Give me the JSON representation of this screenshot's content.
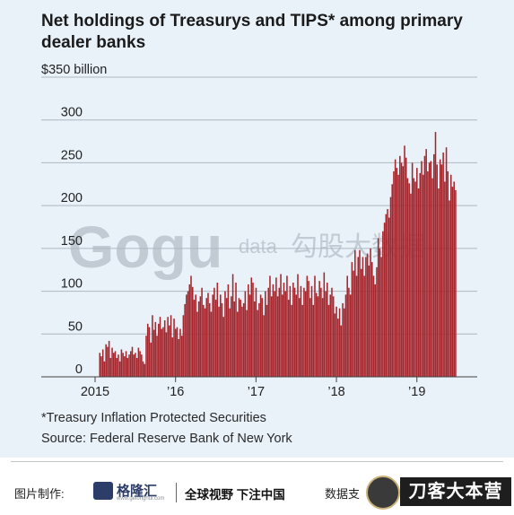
{
  "title": "Net holdings of Treasurys and TIPS* among primary dealer banks",
  "footnote": "*Treasury Inflation Protected Securities",
  "source": "Source: Federal Reserve Bank of New York",
  "watermark": {
    "latin": "Gogu",
    "small": "data",
    "cjk": "勾股大数据"
  },
  "footer": {
    "credit_label": "图片制作:",
    "logo_name": "格隆汇",
    "logo_sub": "www.gelonghui.com",
    "slogan": "全球视野 下注中国",
    "data_support": "数据支",
    "brand": "刀客大本营"
  },
  "colors": {
    "bar": "#a5262d",
    "background": "#e9f1f9",
    "gridline": "#aeb6bf"
  },
  "chart_data": {
    "type": "bar",
    "title": "Net holdings of Treasurys and TIPS* among primary dealer banks",
    "ylabel": "$350 billion",
    "ylim": [
      0,
      350
    ],
    "yticks": [
      0,
      50,
      100,
      150,
      200,
      250,
      300
    ],
    "ytick_labels": [
      "0",
      "50",
      "100",
      "150",
      "200",
      "250",
      "300"
    ],
    "top_label": "$350 billion",
    "xlim": [
      2015.0,
      2019.75
    ],
    "xticks": [
      2015,
      2016,
      2017,
      2018,
      2019
    ],
    "xtick_labels": [
      "2015",
      "’16",
      "’17",
      "’18",
      "’19"
    ],
    "grid": true,
    "series": [
      {
        "frequency": "weekly",
        "start": 2015.05,
        "step": 0.01923,
        "values": [
          28,
          24,
          32,
          18,
          38,
          35,
          42,
          22,
          34,
          28,
          30,
          22,
          26,
          18,
          32,
          28,
          24,
          30,
          22,
          26,
          30,
          35,
          26,
          28,
          22,
          34,
          30,
          26,
          18,
          15,
          48,
          62,
          58,
          40,
          72,
          55,
          64,
          48,
          62,
          70,
          56,
          58,
          66,
          52,
          70,
          60,
          72,
          46,
          68,
          56,
          58,
          44,
          56,
          48,
          72,
          85,
          96,
          100,
          108,
          118,
          105,
          90,
          96,
          76,
          88,
          94,
          104,
          84,
          80,
          92,
          98,
          86,
          76,
          96,
          104,
          90,
          110,
          82,
          96,
          86,
          70,
          100,
          92,
          108,
          80,
          94,
          120,
          88,
          110,
          76,
          92,
          90,
          82,
          86,
          100,
          78,
          108,
          96,
          116,
          110,
          88,
          104,
          78,
          86,
          96,
          92,
          72,
          100,
          84,
          104,
          118,
          94,
          108,
          100,
          116,
          94,
          104,
          120,
          96,
          110,
          100,
          118,
          90,
          106,
          84,
          110,
          104,
          96,
          120,
          92,
          106,
          84,
          104,
          100,
          118,
          112,
          92,
          106,
          84,
          118,
          98,
          94,
          112,
          104,
          92,
          122,
          100,
          110,
          84,
          96,
          104,
          94,
          74,
          82,
          68,
          80,
          60,
          86,
          80,
          96,
          118,
          104,
          96,
          134,
          124,
          148,
          118,
          140,
          148,
          126,
          140,
          118,
          140,
          144,
          130,
          150,
          134,
          118,
          108,
          128,
          162,
          150,
          140,
          170,
          180,
          190,
          196,
          186,
          210,
          225,
          240,
          254,
          244,
          236,
          258,
          250,
          246,
          270,
          256,
          232,
          226,
          214,
          250,
          232,
          228,
          244,
          220,
          238,
          252,
          236,
          258,
          266,
          240,
          250,
          252,
          232,
          260,
          286,
          248,
          220,
          254,
          248,
          262,
          228,
          268,
          240,
          206,
          236,
          222,
          228,
          218
        ]
      }
    ]
  }
}
